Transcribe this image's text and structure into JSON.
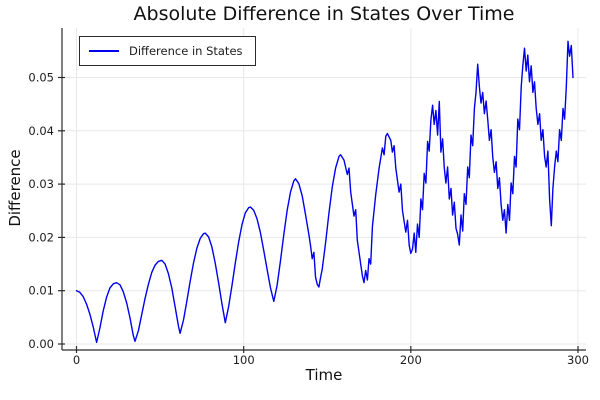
{
  "title": "Absolute Difference in States Over Time",
  "colors": {
    "series": "#0000ee",
    "grid": "#e8e8e8",
    "axis": "#2b2b2b",
    "tick_text": "#1c1c1c",
    "background": "#ffffff"
  },
  "legend": {
    "position": "top-left",
    "entries": [
      {
        "label": "Difference in States",
        "color": "#0000ee"
      }
    ]
  },
  "chart_data": {
    "type": "line",
    "title": "Absolute Difference in States Over Time",
    "xlabel": "Time",
    "ylabel": "Difference",
    "xlim": [
      0,
      300
    ],
    "ylim": [
      0.0,
      0.057
    ],
    "xticks": [
      0,
      100,
      200,
      300
    ],
    "ytick_values": [
      0,
      0.01,
      0.02,
      0.03,
      0.04,
      0.05
    ],
    "ytick_labels": [
      "0.00",
      "0.01",
      "0.02",
      "0.03",
      "0.04",
      "0.05"
    ],
    "grid": true,
    "legend_position": "top-left",
    "series": [
      {
        "name": "Difference in States",
        "color": "#0000ee",
        "points": [
          [
            0,
            0.01
          ],
          [
            2,
            0.0097
          ],
          [
            4,
            0.0089
          ],
          [
            6,
            0.0075
          ],
          [
            8,
            0.0056
          ],
          [
            10,
            0.0032
          ],
          [
            12,
            0.0003
          ],
          [
            14,
            0.003
          ],
          [
            16,
            0.0062
          ],
          [
            18,
            0.0088
          ],
          [
            20,
            0.0105
          ],
          [
            22,
            0.0113
          ],
          [
            24,
            0.0115
          ],
          [
            26,
            0.0111
          ],
          [
            28,
            0.0098
          ],
          [
            30,
            0.0077
          ],
          [
            32,
            0.0049
          ],
          [
            34,
            0.0016
          ],
          [
            35,
            0.0005
          ],
          [
            37,
            0.0025
          ],
          [
            39,
            0.0055
          ],
          [
            41,
            0.0085
          ],
          [
            43,
            0.0112
          ],
          [
            45,
            0.0134
          ],
          [
            47,
            0.0148
          ],
          [
            49,
            0.0155
          ],
          [
            51,
            0.0157
          ],
          [
            53,
            0.015
          ],
          [
            55,
            0.0132
          ],
          [
            57,
            0.0105
          ],
          [
            59,
            0.007
          ],
          [
            61,
            0.0033
          ],
          [
            62,
            0.002
          ],
          [
            64,
            0.0045
          ],
          [
            66,
            0.008
          ],
          [
            68,
            0.0118
          ],
          [
            70,
            0.0152
          ],
          [
            72,
            0.018
          ],
          [
            74,
            0.0198
          ],
          [
            76,
            0.0207
          ],
          [
            77,
            0.0208
          ],
          [
            79,
            0.0201
          ],
          [
            81,
            0.0182
          ],
          [
            83,
            0.0152
          ],
          [
            85,
            0.0115
          ],
          [
            87,
            0.0076
          ],
          [
            89,
            0.004
          ],
          [
            91,
            0.007
          ],
          [
            93,
            0.011
          ],
          [
            95,
            0.0152
          ],
          [
            97,
            0.0192
          ],
          [
            99,
            0.0224
          ],
          [
            101,
            0.0246
          ],
          [
            103,
            0.0256
          ],
          [
            104,
            0.0257
          ],
          [
            106,
            0.0251
          ],
          [
            108,
            0.0235
          ],
          [
            110,
            0.0209
          ],
          [
            112,
            0.0176
          ],
          [
            114,
            0.014
          ],
          [
            116,
            0.0106
          ],
          [
            118,
            0.008
          ],
          [
            120,
            0.011
          ],
          [
            122,
            0.0155
          ],
          [
            124,
            0.0205
          ],
          [
            126,
            0.025
          ],
          [
            128,
            0.0285
          ],
          [
            130,
            0.0306
          ],
          [
            131,
            0.031
          ],
          [
            133,
            0.0301
          ],
          [
            135,
            0.0278
          ],
          [
            137,
            0.0243
          ],
          [
            139,
            0.0205
          ],
          [
            140,
            0.0185
          ],
          [
            141,
            0.016
          ],
          [
            142,
            0.0172
          ],
          [
            143,
            0.0126
          ],
          [
            144,
            0.0112
          ],
          [
            145,
            0.0107
          ],
          [
            146,
            0.0125
          ],
          [
            147,
            0.014
          ],
          [
            149,
            0.019
          ],
          [
            151,
            0.0245
          ],
          [
            153,
            0.0295
          ],
          [
            155,
            0.033
          ],
          [
            157,
            0.0352
          ],
          [
            158,
            0.0355
          ],
          [
            160,
            0.0345
          ],
          [
            162,
            0.0318
          ],
          [
            163,
            0.033
          ],
          [
            164,
            0.0285
          ],
          [
            166,
            0.024
          ],
          [
            167,
            0.0252
          ],
          [
            168,
            0.0195
          ],
          [
            170,
            0.015
          ],
          [
            171,
            0.0128
          ],
          [
            172,
            0.0115
          ],
          [
            173,
            0.0138
          ],
          [
            174,
            0.012
          ],
          [
            175,
            0.016
          ],
          [
            176,
            0.015
          ],
          [
            177,
            0.022
          ],
          [
            179,
            0.028
          ],
          [
            181,
            0.033
          ],
          [
            183,
            0.0368
          ],
          [
            184,
            0.0355
          ],
          [
            185,
            0.039
          ],
          [
            186,
            0.0395
          ],
          [
            188,
            0.0382
          ],
          [
            189,
            0.036
          ],
          [
            190,
            0.0372
          ],
          [
            191,
            0.033
          ],
          [
            193,
            0.0285
          ],
          [
            194,
            0.03
          ],
          [
            195,
            0.025
          ],
          [
            197,
            0.021
          ],
          [
            198,
            0.0232
          ],
          [
            199,
            0.0185
          ],
          [
            200,
            0.017
          ],
          [
            201,
            0.0178
          ],
          [
            202,
            0.0208
          ],
          [
            203,
            0.0172
          ],
          [
            204,
            0.0225
          ],
          [
            205,
            0.02
          ],
          [
            206,
            0.0272
          ],
          [
            207,
            0.0252
          ],
          [
            208,
            0.032
          ],
          [
            209,
            0.0302
          ],
          [
            210,
            0.038
          ],
          [
            211,
            0.0362
          ],
          [
            212,
            0.042
          ],
          [
            213,
            0.0448
          ],
          [
            214,
            0.0412
          ],
          [
            215,
            0.0438
          ],
          [
            216,
            0.0392
          ],
          [
            217,
            0.0455
          ],
          [
            218,
            0.036
          ],
          [
            219,
            0.0385
          ],
          [
            220,
            0.033
          ],
          [
            221,
            0.0302
          ],
          [
            222,
            0.0332
          ],
          [
            223,
            0.0272
          ],
          [
            224,
            0.0292
          ],
          [
            225,
            0.0242
          ],
          [
            226,
            0.0266
          ],
          [
            227,
            0.0217
          ],
          [
            228,
            0.0206
          ],
          [
            229,
            0.0186
          ],
          [
            230,
            0.0242
          ],
          [
            231,
            0.0212
          ],
          [
            232,
            0.0282
          ],
          [
            233,
            0.0262
          ],
          [
            234,
            0.0332
          ],
          [
            235,
            0.0312
          ],
          [
            236,
            0.0392
          ],
          [
            237,
            0.0372
          ],
          [
            238,
            0.0442
          ],
          [
            239,
            0.0472
          ],
          [
            240,
            0.0525
          ],
          [
            241,
            0.0482
          ],
          [
            242,
            0.0452
          ],
          [
            243,
            0.0472
          ],
          [
            244,
            0.0432
          ],
          [
            245,
            0.0456
          ],
          [
            246,
            0.0422
          ],
          [
            247,
            0.0382
          ],
          [
            248,
            0.0402
          ],
          [
            249,
            0.0352
          ],
          [
            250,
            0.0322
          ],
          [
            251,
            0.0342
          ],
          [
            252,
            0.0292
          ],
          [
            253,
            0.0312
          ],
          [
            254,
            0.0262
          ],
          [
            255,
            0.0232
          ],
          [
            256,
            0.0252
          ],
          [
            257,
            0.0208
          ],
          [
            258,
            0.0262
          ],
          [
            259,
            0.0232
          ],
          [
            260,
            0.0302
          ],
          [
            261,
            0.0282
          ],
          [
            262,
            0.0352
          ],
          [
            263,
            0.0332
          ],
          [
            264,
            0.0422
          ],
          [
            265,
            0.0402
          ],
          [
            266,
            0.0482
          ],
          [
            267,
            0.0522
          ],
          [
            268,
            0.0555
          ],
          [
            269,
            0.0512
          ],
          [
            270,
            0.0542
          ],
          [
            271,
            0.0492
          ],
          [
            272,
            0.0522
          ],
          [
            273,
            0.0472
          ],
          [
            274,
            0.0492
          ],
          [
            275,
            0.0442
          ],
          [
            276,
            0.0412
          ],
          [
            277,
            0.0432
          ],
          [
            278,
            0.0382
          ],
          [
            279,
            0.0402
          ],
          [
            280,
            0.0352
          ],
          [
            281,
            0.0332
          ],
          [
            282,
            0.0362
          ],
          [
            283,
            0.0272
          ],
          [
            284,
            0.0222
          ],
          [
            285,
            0.0292
          ],
          [
            286,
            0.0332
          ],
          [
            287,
            0.0362
          ],
          [
            288,
            0.0342
          ],
          [
            289,
            0.0402
          ],
          [
            290,
            0.0382
          ],
          [
            291,
            0.0442
          ],
          [
            292,
            0.0422
          ],
          [
            293,
            0.0482
          ],
          [
            294,
            0.0568
          ],
          [
            295,
            0.054
          ],
          [
            296,
            0.056
          ],
          [
            297,
            0.05
          ]
        ]
      }
    ]
  }
}
